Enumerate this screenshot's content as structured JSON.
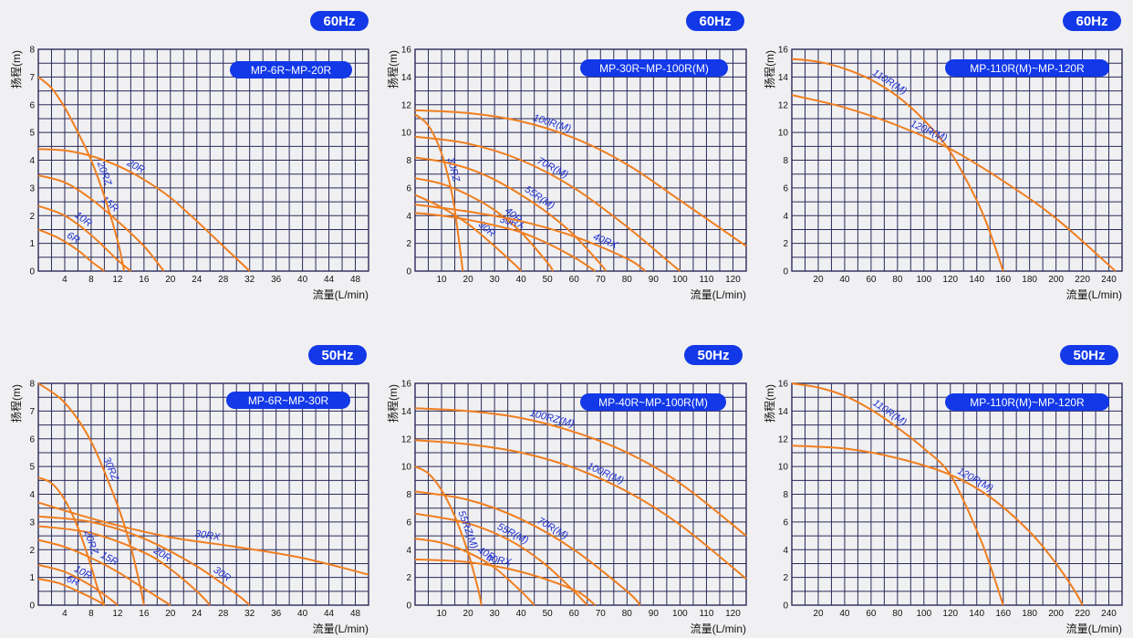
{
  "chart_data": [
    {
      "type": "line",
      "badge": "60Hz",
      "model_range": "MP-6R~MP-20R",
      "xlabel": "流量(L/min)",
      "ylabel": "扬程(m)",
      "xlim": [
        0,
        50
      ],
      "ylim": [
        0,
        8
      ],
      "x_ticks": [
        4,
        8,
        12,
        16,
        20,
        24,
        28,
        32,
        36,
        40,
        44,
        48
      ],
      "y_ticks": [
        0,
        1,
        2,
        3,
        4,
        5,
        6,
        7,
        8
      ],
      "grid_x_step": 2,
      "grid_y_step": 0.5,
      "series": [
        {
          "name": "6R",
          "x": [
            0,
            3,
            6,
            8,
            10
          ],
          "y": [
            1.5,
            1.2,
            0.75,
            0.35,
            0
          ]
        },
        {
          "name": "10R",
          "x": [
            0,
            4,
            8,
            12,
            14
          ],
          "y": [
            2.35,
            2.0,
            1.3,
            0.4,
            0
          ]
        },
        {
          "name": "15R",
          "x": [
            0,
            4,
            8,
            12,
            16,
            19
          ],
          "y": [
            3.45,
            3.2,
            2.6,
            1.8,
            0.9,
            0
          ]
        },
        {
          "name": "20R",
          "x": [
            0,
            4,
            8,
            12,
            16,
            20,
            24,
            28,
            32
          ],
          "y": [
            4.4,
            4.35,
            4.15,
            3.8,
            3.3,
            2.65,
            1.8,
            0.9,
            0
          ]
        },
        {
          "name": "20RZ",
          "x": [
            0,
            2,
            4,
            6,
            8,
            10,
            12,
            13
          ],
          "y": [
            7.0,
            6.6,
            5.9,
            5.0,
            4.0,
            2.7,
            1.1,
            0
          ]
        }
      ]
    },
    {
      "type": "line",
      "badge": "60Hz",
      "model_range": "MP-30R~MP-100R(M)",
      "xlabel": "流量(L/min)",
      "ylabel": "扬程(m)",
      "xlim": [
        0,
        125
      ],
      "ylim": [
        0,
        16
      ],
      "x_ticks": [
        10,
        20,
        30,
        40,
        50,
        60,
        70,
        80,
        90,
        100,
        110,
        120
      ],
      "y_ticks": [
        0,
        2,
        4,
        6,
        8,
        10,
        12,
        14,
        16
      ],
      "grid_x_step": 5,
      "grid_y_step": 1,
      "series": [
        {
          "name": "30RZ",
          "x": [
            0,
            5,
            10,
            14,
            16,
            17.5,
            18
          ],
          "y": [
            11.3,
            10.5,
            8.5,
            5.5,
            3.0,
            0.8,
            0
          ]
        },
        {
          "name": "30R",
          "x": [
            0,
            10,
            20,
            30,
            38,
            40
          ],
          "y": [
            5.5,
            4.6,
            3.4,
            1.8,
            0.4,
            0
          ]
        },
        {
          "name": "40R",
          "x": [
            0,
            10,
            20,
            30,
            40,
            50,
            52
          ],
          "y": [
            6.7,
            6.3,
            5.5,
            4.4,
            2.8,
            0.6,
            0
          ]
        },
        {
          "name": "30RX",
          "x": [
            0,
            10,
            20,
            30,
            40,
            50,
            60,
            68
          ],
          "y": [
            4.2,
            4.0,
            3.7,
            3.3,
            2.8,
            2.0,
            1.0,
            0
          ]
        },
        {
          "name": "40RX",
          "x": [
            0,
            20,
            40,
            60,
            80,
            87
          ],
          "y": [
            4.8,
            4.3,
            3.6,
            2.5,
            0.9,
            0
          ]
        },
        {
          "name": "55R(M)",
          "x": [
            0,
            10,
            20,
            30,
            40,
            50,
            60,
            70,
            72
          ],
          "y": [
            8.2,
            7.9,
            7.4,
            6.6,
            5.5,
            4.2,
            2.6,
            0.5,
            0
          ]
        },
        {
          "name": "70R(M)",
          "x": [
            0,
            20,
            40,
            60,
            80,
            95,
            100
          ],
          "y": [
            9.7,
            9.2,
            8.0,
            6.0,
            3.2,
            0.8,
            0
          ]
        },
        {
          "name": "100R(M)",
          "x": [
            0,
            20,
            40,
            60,
            80,
            100,
            125
          ],
          "y": [
            11.6,
            11.4,
            10.8,
            9.6,
            7.7,
            5.1,
            1.8
          ]
        }
      ]
    },
    {
      "type": "line",
      "badge": "60Hz",
      "model_range": "MP-110R(M)~MP-120R",
      "xlabel": "流量(L/min)",
      "ylabel": "扬程(m)",
      "xlim": [
        0,
        250
      ],
      "ylim": [
        0,
        16
      ],
      "x_ticks": [
        20,
        40,
        60,
        80,
        100,
        120,
        140,
        160,
        180,
        200,
        220,
        240
      ],
      "y_ticks": [
        0,
        2,
        4,
        6,
        8,
        10,
        12,
        14,
        16
      ],
      "grid_x_step": 10,
      "grid_y_step": 1,
      "series": [
        {
          "name": "110R(M)",
          "x": [
            0,
            20,
            40,
            60,
            80,
            100,
            120,
            140,
            150,
            160
          ],
          "y": [
            15.3,
            15.1,
            14.6,
            13.8,
            12.6,
            10.9,
            8.6,
            5.1,
            2.8,
            0
          ]
        },
        {
          "name": "120R(M)",
          "x": [
            0,
            40,
            80,
            120,
            160,
            200,
            245
          ],
          "y": [
            12.7,
            11.8,
            10.5,
            8.8,
            6.5,
            3.8,
            0
          ]
        }
      ]
    },
    {
      "type": "line",
      "badge": "50Hz",
      "model_range": "MP-6R~MP-30R",
      "xlabel": "流量(L/min)",
      "ylabel": "扬程(m)",
      "xlim": [
        0,
        50
      ],
      "ylim": [
        0,
        8
      ],
      "x_ticks": [
        4,
        8,
        12,
        16,
        20,
        24,
        28,
        32,
        36,
        40,
        44,
        48
      ],
      "y_ticks": [
        0,
        1,
        2,
        3,
        4,
        5,
        6,
        7,
        8
      ],
      "grid_x_step": 2,
      "grid_y_step": 0.5,
      "series": [
        {
          "name": "6R",
          "x": [
            0,
            3,
            6,
            9,
            10
          ],
          "y": [
            0.95,
            0.8,
            0.5,
            0.15,
            0
          ]
        },
        {
          "name": "10R",
          "x": [
            0,
            4,
            8,
            11,
            12
          ],
          "y": [
            1.45,
            1.2,
            0.7,
            0.2,
            0
          ]
        },
        {
          "name": "15R",
          "x": [
            0,
            4,
            8,
            12,
            16,
            20
          ],
          "y": [
            2.35,
            2.1,
            1.7,
            1.2,
            0.6,
            0
          ]
        },
        {
          "name": "20R",
          "x": [
            0,
            8,
            16,
            20,
            24,
            26
          ],
          "y": [
            2.85,
            2.6,
            1.9,
            1.3,
            0.5,
            0
          ]
        },
        {
          "name": "30R",
          "x": [
            0,
            8,
            16,
            24,
            30,
            32
          ],
          "y": [
            3.2,
            3.0,
            2.4,
            1.4,
            0.4,
            0
          ]
        },
        {
          "name": "20RZ",
          "x": [
            0,
            2,
            4,
            6,
            8,
            9,
            10
          ],
          "y": [
            4.6,
            4.4,
            3.8,
            2.8,
            1.4,
            0.6,
            0
          ]
        },
        {
          "name": "30RX",
          "x": [
            0,
            10,
            20,
            30,
            40,
            50
          ],
          "y": [
            3.7,
            3.0,
            2.45,
            2.1,
            1.7,
            1.1
          ]
        },
        {
          "name": "30RZ",
          "x": [
            0,
            4,
            8,
            12,
            14,
            15.5,
            16
          ],
          "y": [
            8.0,
            7.3,
            5.9,
            3.6,
            2.1,
            0.6,
            0
          ]
        }
      ]
    },
    {
      "type": "line",
      "badge": "50Hz",
      "model_range": "MP-40R~MP-100R(M)",
      "xlabel": "流量(L/min)",
      "ylabel": "扬程(m)",
      "xlim": [
        0,
        125
      ],
      "ylim": [
        0,
        16
      ],
      "x_ticks": [
        10,
        20,
        30,
        40,
        50,
        60,
        70,
        80,
        90,
        100,
        110,
        120
      ],
      "y_ticks": [
        0,
        2,
        4,
        6,
        8,
        10,
        12,
        14,
        16
      ],
      "grid_x_step": 5,
      "grid_y_step": 1,
      "series": [
        {
          "name": "40R",
          "x": [
            0,
            10,
            20,
            30,
            40,
            45
          ],
          "y": [
            4.8,
            4.5,
            3.8,
            2.7,
            1.0,
            0
          ]
        },
        {
          "name": "40RX",
          "x": [
            0,
            20,
            40,
            60,
            68
          ],
          "y": [
            3.3,
            3.1,
            2.4,
            1.1,
            0
          ]
        },
        {
          "name": "55R(M)",
          "x": [
            0,
            10,
            20,
            30,
            40,
            50,
            60,
            65
          ],
          "y": [
            6.6,
            6.3,
            5.9,
            5.2,
            4.2,
            2.8,
            1.0,
            0
          ]
        },
        {
          "name": "70R(M)",
          "x": [
            0,
            20,
            40,
            60,
            80,
            85
          ],
          "y": [
            8.2,
            7.6,
            6.2,
            4.0,
            1.0,
            0
          ]
        },
        {
          "name": "55RZ(M)",
          "x": [
            0,
            5,
            10,
            15,
            20,
            24,
            25
          ],
          "y": [
            10.0,
            9.5,
            8.3,
            6.4,
            3.8,
            1.0,
            0
          ]
        },
        {
          "name": "100R(M)",
          "x": [
            0,
            20,
            40,
            60,
            80,
            100,
            125
          ],
          "y": [
            11.9,
            11.6,
            11.0,
            9.9,
            8.2,
            5.8,
            1.9
          ]
        },
        {
          "name": "100RZ(M)",
          "x": [
            0,
            20,
            40,
            60,
            80,
            100,
            125
          ],
          "y": [
            14.2,
            14.0,
            13.5,
            12.5,
            11.0,
            8.8,
            5.0
          ]
        }
      ]
    },
    {
      "type": "line",
      "badge": "50Hz",
      "model_range": "MP-110R(M)~MP-120R",
      "xlabel": "流量(L/min)",
      "ylabel": "扬程(m)",
      "xlim": [
        0,
        250
      ],
      "ylim": [
        0,
        16
      ],
      "x_ticks": [
        20,
        40,
        60,
        80,
        100,
        120,
        140,
        160,
        180,
        200,
        220,
        240
      ],
      "y_ticks": [
        0,
        2,
        4,
        6,
        8,
        10,
        12,
        14,
        16
      ],
      "grid_x_step": 10,
      "grid_y_step": 1,
      "series": [
        {
          "name": "110R(M)",
          "x": [
            0,
            20,
            40,
            60,
            80,
            100,
            120,
            140,
            150,
            160
          ],
          "y": [
            16.0,
            15.7,
            15.1,
            14.1,
            12.8,
            11.3,
            9.4,
            5.4,
            2.9,
            0
          ]
        },
        {
          "name": "120R(M)",
          "x": [
            0,
            40,
            80,
            120,
            150,
            180,
            200,
            215,
            220
          ],
          "y": [
            11.5,
            11.3,
            10.6,
            9.4,
            7.8,
            5.3,
            3.0,
            0.9,
            0
          ]
        }
      ]
    }
  ],
  "colors": {
    "accent": "#1238e8",
    "curve": "#f07e1f",
    "curve_label": "#1e2fd0",
    "grid": "#2a2a5a"
  }
}
